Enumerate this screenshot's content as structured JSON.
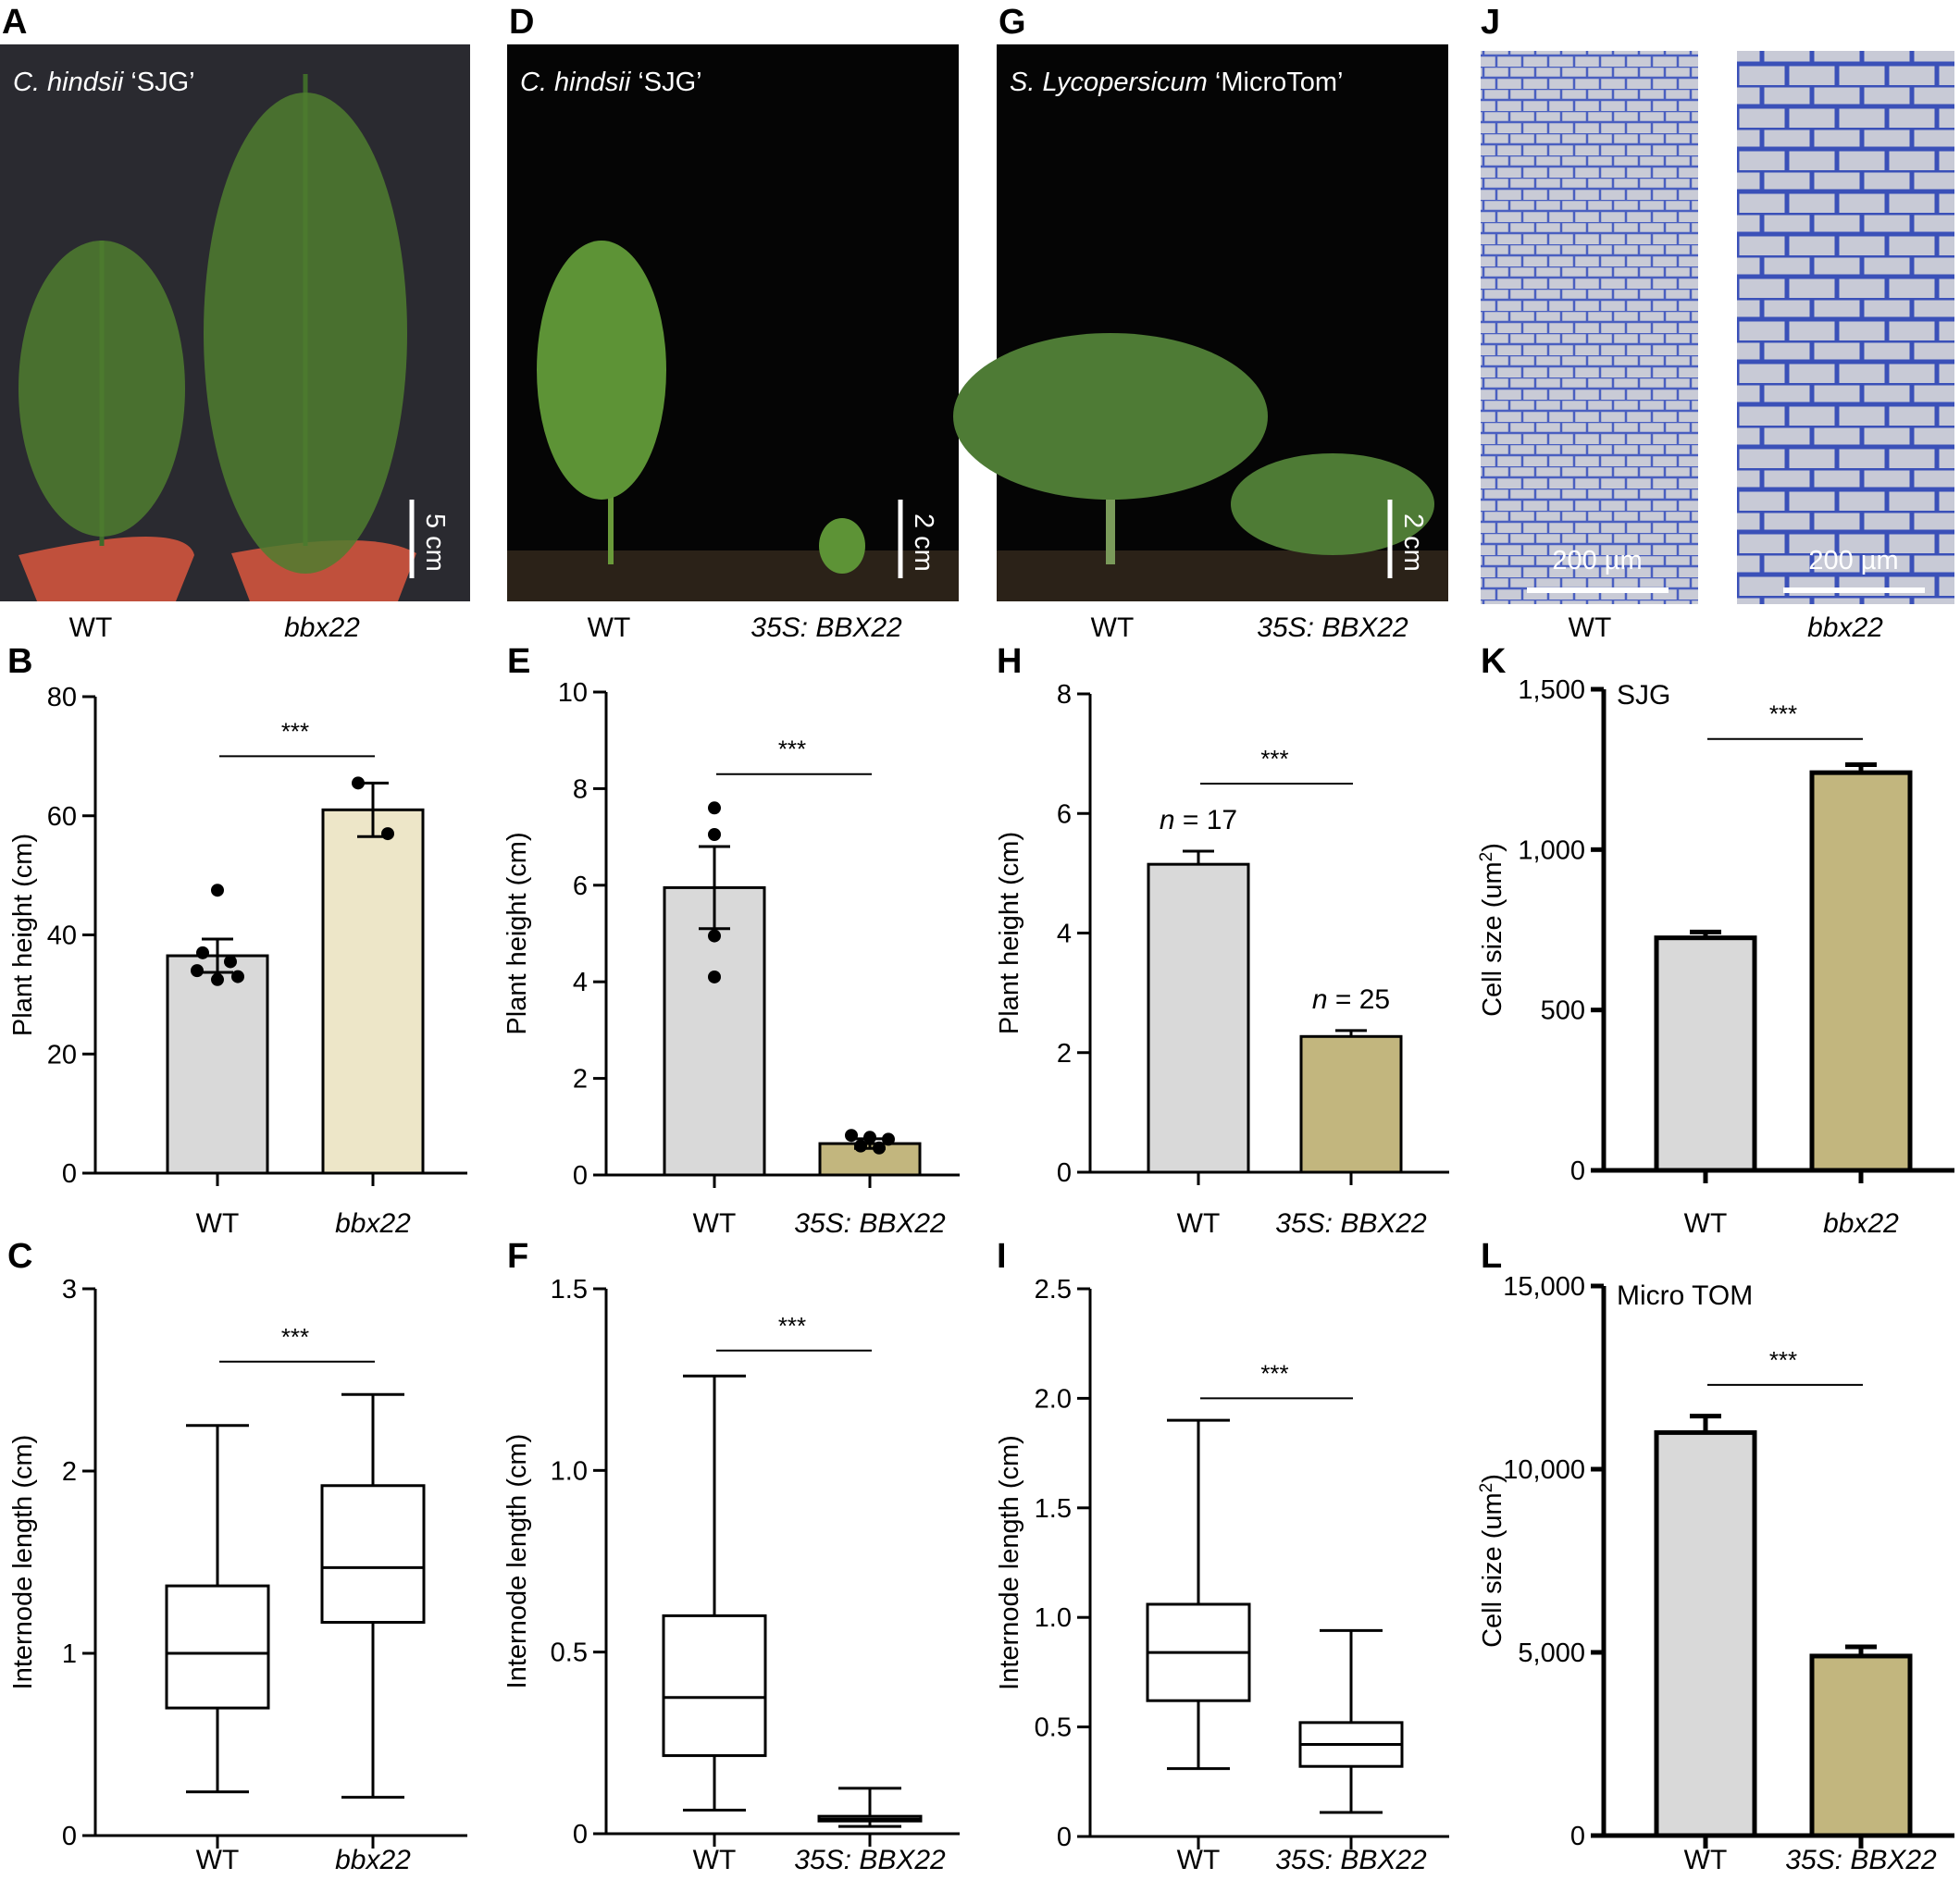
{
  "photo_panels": [
    {
      "letter": "A",
      "caption": "C. hindsii",
      "caption2": " ‘SJG’",
      "scale": "5 cm",
      "labels": [
        "WT",
        "bbx22"
      ],
      "italic": [
        false,
        true
      ]
    },
    {
      "letter": "D",
      "caption": "C. hindsii",
      "caption2": " ‘SJG’",
      "scale": "2 cm",
      "labels": [
        "WT",
        "35S: BBX22"
      ],
      "italic": [
        false,
        true
      ]
    },
    {
      "letter": "G",
      "caption": "S. Lycopersicum",
      "caption2": " ‘MicroTom’",
      "scale": "2 cm",
      "labels": [
        "WT",
        "35S: BBX22"
      ],
      "italic": [
        false,
        true
      ]
    },
    {
      "letter": "J",
      "scale": "200 µm",
      "labels": [
        "WT",
        "bbx22"
      ],
      "italic": [
        false,
        true
      ]
    }
  ],
  "colors": {
    "wt_bar": "#d9d9d9",
    "bbx22_bar": "#ede6c8",
    "oe_bar": "#c2b67e",
    "photo_bg": "#050505",
    "micro_bg": "#c8cad8",
    "micro_wall": "#3f55b8"
  },
  "chart_data": [
    {
      "panel": "B",
      "type": "bar",
      "categories": [
        "WT",
        "bbx22"
      ],
      "values": [
        36.5,
        61
      ],
      "errors": [
        2.8,
        4.5
      ],
      "points": [
        [
          47.5,
          37,
          35.5,
          34,
          33,
          32.5
        ],
        [
          65.5,
          57
        ]
      ],
      "ylabel": "Plant height (cm)",
      "ylim": [
        0,
        80
      ],
      "yticks": [
        "0",
        "20",
        "40",
        "60",
        "80"
      ],
      "sig": "***"
    },
    {
      "panel": "C",
      "type": "box",
      "categories": [
        "WT",
        "bbx22"
      ],
      "boxes": [
        {
          "min": 0.24,
          "q1": 0.7,
          "median": 1.0,
          "q3": 1.37,
          "max": 2.25
        },
        {
          "min": 0.21,
          "q1": 1.17,
          "median": 1.47,
          "q3": 1.92,
          "max": 2.42
        }
      ],
      "ylabel": "Internode length (cm)",
      "ylim": [
        0,
        3
      ],
      "yticks": [
        "0",
        "1",
        "2",
        "3"
      ],
      "sig": "***"
    },
    {
      "panel": "E",
      "type": "bar",
      "categories": [
        "WT",
        "35S: BBX22"
      ],
      "values": [
        5.95,
        0.65
      ],
      "errors": [
        0.85,
        0.1
      ],
      "points": [
        [
          7.6,
          7.05,
          4.95,
          4.1
        ],
        [
          0.82,
          0.78,
          0.74,
          0.6,
          0.56
        ]
      ],
      "ylabel": "Plant height (cm)",
      "ylim": [
        0,
        10
      ],
      "yticks": [
        "0",
        "2",
        "4",
        "6",
        "8",
        "10"
      ],
      "sig": "***"
    },
    {
      "panel": "F",
      "type": "box",
      "categories": [
        "WT",
        "35S: BBX22"
      ],
      "boxes": [
        {
          "min": 0.065,
          "q1": 0.215,
          "median": 0.375,
          "q3": 0.6,
          "max": 1.26
        },
        {
          "min": 0.02,
          "q1": 0.035,
          "median": 0.04,
          "q3": 0.048,
          "max": 0.125
        }
      ],
      "ylabel": "Internode length (cm)",
      "ylim": [
        0,
        1.5
      ],
      "yticks": [
        "0",
        "0.5",
        "1.0",
        "1.5"
      ],
      "sig": "***"
    },
    {
      "panel": "H",
      "type": "bar",
      "categories": [
        "WT",
        "35S: BBX22"
      ],
      "values": [
        5.15,
        2.27
      ],
      "errors": [
        0.22,
        0.1
      ],
      "n_labels": [
        "n = 17",
        "n = 25"
      ],
      "ylabel": "Plant height (cm)",
      "ylim": [
        0,
        8
      ],
      "yticks": [
        "0",
        "2",
        "4",
        "6",
        "8"
      ],
      "sig": "***"
    },
    {
      "panel": "I",
      "type": "box",
      "categories": [
        "WT",
        "35S: BBX22"
      ],
      "boxes": [
        {
          "min": 0.31,
          "q1": 0.62,
          "median": 0.84,
          "q3": 1.06,
          "max": 1.9
        },
        {
          "min": 0.11,
          "q1": 0.32,
          "median": 0.42,
          "q3": 0.52,
          "max": 0.94
        }
      ],
      "ylabel": "Internode length (cm)",
      "ylim": [
        0,
        2.5
      ],
      "yticks": [
        "0",
        "0.5",
        "1.0",
        "1.5",
        "2.0",
        "2.5"
      ],
      "sig": "***"
    },
    {
      "panel": "K",
      "type": "bar",
      "categories": [
        "WT",
        "bbx22"
      ],
      "values": [
        725,
        1240
      ],
      "errors": [
        18,
        25
      ],
      "ylabel": "Cell size (um",
      "ylabel_sup": "2",
      "ylabel_end": ")",
      "ylim": [
        0,
        1500
      ],
      "yticks": [
        "0",
        "500",
        "1,000",
        "1,500"
      ],
      "sig": "***",
      "annotation": "SJG"
    },
    {
      "panel": "L",
      "type": "bar",
      "categories": [
        "WT",
        "35S: BBX22"
      ],
      "values": [
        11000,
        4900
      ],
      "errors": [
        450,
        250
      ],
      "ylabel": "Cell size (um",
      "ylabel_sup": "2",
      "ylabel_end": ")",
      "ylim": [
        0,
        15000
      ],
      "yticks": [
        "0",
        "5,000",
        "10,000",
        "15,000"
      ],
      "sig": "***",
      "annotation": "Micro TOM"
    }
  ]
}
